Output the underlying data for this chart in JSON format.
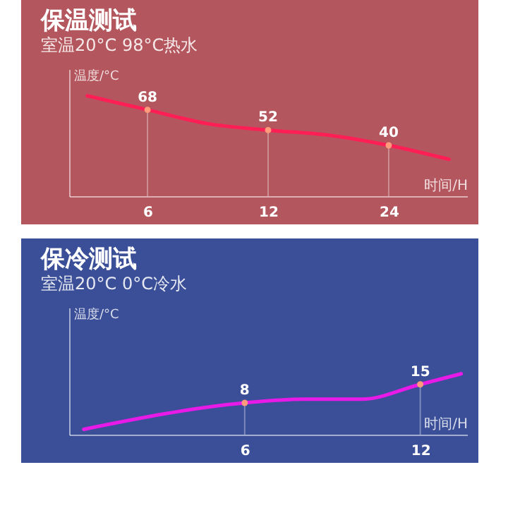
{
  "chart_data": [
    {
      "type": "line",
      "title": "保温测试",
      "subtitle": "室温20°C   98°C热水",
      "ylabel": "温度/°C",
      "xlabel": "时间/H",
      "categories": [
        null,
        "6",
        null,
        "12",
        null,
        "24",
        null
      ],
      "series": [
        {
          "color": "#ff1f55",
          "values": [
            79,
            68,
            57,
            52,
            48,
            40,
            29
          ],
          "value_labels": [
            null,
            "68",
            null,
            "52",
            null,
            "40",
            null
          ]
        }
      ],
      "ylim": [
        0,
        100
      ],
      "tick_labels": "x",
      "grid": false
    },
    {
      "type": "line",
      "title": "保冷测试",
      "subtitle": "室温20°C   0°C冷水",
      "ylabel": "温度/°C",
      "xlabel": "时间/H",
      "x": [
        0.5,
        6,
        8,
        10,
        12,
        13.4
      ],
      "series": [
        {
          "color": "#e81ae8",
          "values": [
            -2,
            8,
            9.4,
            9.4,
            15,
            19
          ],
          "value_labels": [
            null,
            "8",
            null,
            null,
            "15",
            null
          ]
        }
      ],
      "xlim": [
        0,
        13.6
      ],
      "xticks": [
        6,
        12
      ],
      "ylim": [
        -4,
        44
      ],
      "tick_labels": "x",
      "grid": false
    }
  ]
}
